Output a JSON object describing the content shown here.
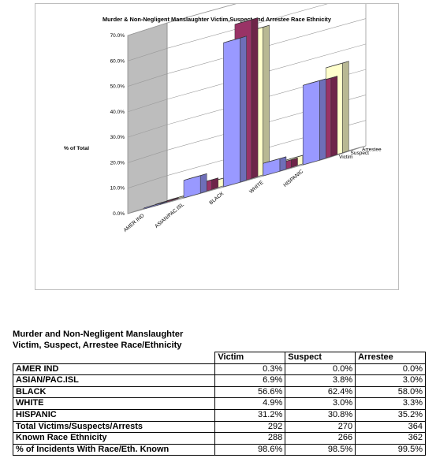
{
  "chart_data": {
    "type": "bar",
    "title": "Murder & Non-Negligent Manslaughter Victim,Suspect and Arrestee Race Ethnicity",
    "ylabel": "% of Total",
    "xlabel": "",
    "ylim": [
      0,
      70
    ],
    "y_ticks": [
      "0.0%",
      "10.0%",
      "20.0%",
      "30.0%",
      "40.0%",
      "50.0%",
      "60.0%",
      "70.0%"
    ],
    "grid": true,
    "categories": [
      "AMER IND",
      "ASIAN/PAC.ISL",
      "BLACK",
      "WHITE",
      "HISPANIC"
    ],
    "series": [
      {
        "name": "Victim",
        "values": [
          0.3,
          6.9,
          56.6,
          4.9,
          31.2
        ],
        "color": "#9999ff"
      },
      {
        "name": "Suspect",
        "values": [
          0.0,
          3.8,
          62.4,
          3.0,
          30.8
        ],
        "color": "#993366"
      },
      {
        "name": "Arrestee",
        "values": [
          0.0,
          3.0,
          58.0,
          3.3,
          35.2
        ],
        "color": "#ffffcc"
      }
    ]
  },
  "table": {
    "title_line1": "Murder and Non-Negligent Manslaughter",
    "title_line2": "Victim, Suspect, Arrestee Race/Ethnicity",
    "headers": [
      "Victim",
      "Suspect",
      "Arrestee"
    ],
    "rows": [
      {
        "label": "AMER IND",
        "values": [
          "0.3%",
          "0.0%",
          "0.0%"
        ]
      },
      {
        "label": "ASIAN/PAC.ISL",
        "values": [
          "6.9%",
          "3.8%",
          "3.0%"
        ]
      },
      {
        "label": "BLACK",
        "values": [
          "56.6%",
          "62.4%",
          "58.0%"
        ]
      },
      {
        "label": "WHITE",
        "values": [
          "4.9%",
          "3.0%",
          "3.3%"
        ]
      },
      {
        "label": "HISPANIC",
        "values": [
          "31.2%",
          "30.8%",
          "35.2%"
        ]
      },
      {
        "label": "Total Victims/Suspects/Arrests",
        "values": [
          "292",
          "270",
          "364"
        ]
      },
      {
        "label": "Known Race Ethnicity",
        "values": [
          "288",
          "266",
          "362"
        ]
      },
      {
        "label": "% of Incidents With Race/Eth. Known",
        "values": [
          "98.6%",
          "98.5%",
          "99.5%"
        ]
      }
    ]
  }
}
